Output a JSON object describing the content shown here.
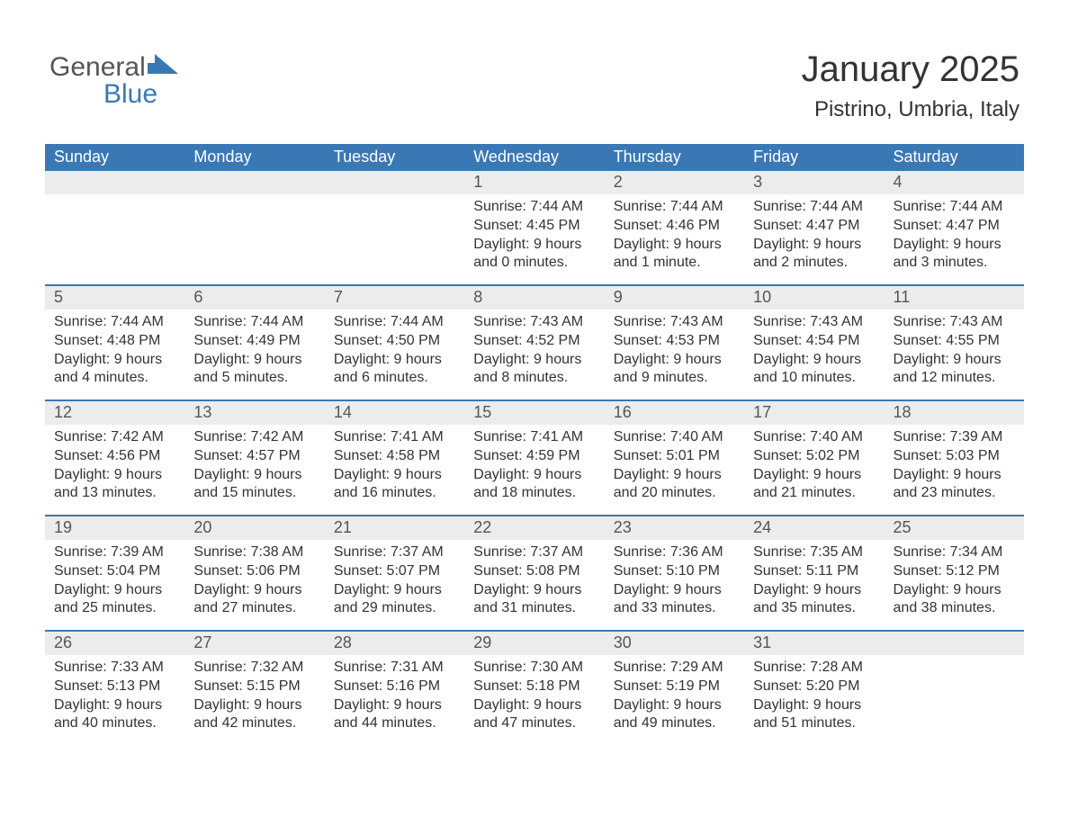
{
  "logo": {
    "text_general": "General",
    "text_blue": "Blue"
  },
  "title": "January 2025",
  "location": "Pistrino, Umbria, Italy",
  "colors": {
    "header_bg": "#3a78b5",
    "header_text": "#ffffff",
    "daynum_bg": "#ececec",
    "daynum_border": "#3a78b5",
    "body_text": "#333333",
    "logo_gray": "#555555",
    "logo_blue": "#3a78b5",
    "page_bg": "#ffffff"
  },
  "fonts": {
    "title_size_pt": 30,
    "location_size_pt": 18,
    "header_size_pt": 14,
    "daynum_size_pt": 14,
    "body_size_pt": 12
  },
  "calendar": {
    "day_headers": [
      "Sunday",
      "Monday",
      "Tuesday",
      "Wednesday",
      "Thursday",
      "Friday",
      "Saturday"
    ],
    "weeks": [
      [
        {
          "day": "",
          "sunrise": "",
          "sunset": "",
          "daylight1": "",
          "daylight2": ""
        },
        {
          "day": "",
          "sunrise": "",
          "sunset": "",
          "daylight1": "",
          "daylight2": ""
        },
        {
          "day": "",
          "sunrise": "",
          "sunset": "",
          "daylight1": "",
          "daylight2": ""
        },
        {
          "day": "1",
          "sunrise": "Sunrise: 7:44 AM",
          "sunset": "Sunset: 4:45 PM",
          "daylight1": "Daylight: 9 hours",
          "daylight2": "and 0 minutes."
        },
        {
          "day": "2",
          "sunrise": "Sunrise: 7:44 AM",
          "sunset": "Sunset: 4:46 PM",
          "daylight1": "Daylight: 9 hours",
          "daylight2": "and 1 minute."
        },
        {
          "day": "3",
          "sunrise": "Sunrise: 7:44 AM",
          "sunset": "Sunset: 4:47 PM",
          "daylight1": "Daylight: 9 hours",
          "daylight2": "and 2 minutes."
        },
        {
          "day": "4",
          "sunrise": "Sunrise: 7:44 AM",
          "sunset": "Sunset: 4:47 PM",
          "daylight1": "Daylight: 9 hours",
          "daylight2": "and 3 minutes."
        }
      ],
      [
        {
          "day": "5",
          "sunrise": "Sunrise: 7:44 AM",
          "sunset": "Sunset: 4:48 PM",
          "daylight1": "Daylight: 9 hours",
          "daylight2": "and 4 minutes."
        },
        {
          "day": "6",
          "sunrise": "Sunrise: 7:44 AM",
          "sunset": "Sunset: 4:49 PM",
          "daylight1": "Daylight: 9 hours",
          "daylight2": "and 5 minutes."
        },
        {
          "day": "7",
          "sunrise": "Sunrise: 7:44 AM",
          "sunset": "Sunset: 4:50 PM",
          "daylight1": "Daylight: 9 hours",
          "daylight2": "and 6 minutes."
        },
        {
          "day": "8",
          "sunrise": "Sunrise: 7:43 AM",
          "sunset": "Sunset: 4:52 PM",
          "daylight1": "Daylight: 9 hours",
          "daylight2": "and 8 minutes."
        },
        {
          "day": "9",
          "sunrise": "Sunrise: 7:43 AM",
          "sunset": "Sunset: 4:53 PM",
          "daylight1": "Daylight: 9 hours",
          "daylight2": "and 9 minutes."
        },
        {
          "day": "10",
          "sunrise": "Sunrise: 7:43 AM",
          "sunset": "Sunset: 4:54 PM",
          "daylight1": "Daylight: 9 hours",
          "daylight2": "and 10 minutes."
        },
        {
          "day": "11",
          "sunrise": "Sunrise: 7:43 AM",
          "sunset": "Sunset: 4:55 PM",
          "daylight1": "Daylight: 9 hours",
          "daylight2": "and 12 minutes."
        }
      ],
      [
        {
          "day": "12",
          "sunrise": "Sunrise: 7:42 AM",
          "sunset": "Sunset: 4:56 PM",
          "daylight1": "Daylight: 9 hours",
          "daylight2": "and 13 minutes."
        },
        {
          "day": "13",
          "sunrise": "Sunrise: 7:42 AM",
          "sunset": "Sunset: 4:57 PM",
          "daylight1": "Daylight: 9 hours",
          "daylight2": "and 15 minutes."
        },
        {
          "day": "14",
          "sunrise": "Sunrise: 7:41 AM",
          "sunset": "Sunset: 4:58 PM",
          "daylight1": "Daylight: 9 hours",
          "daylight2": "and 16 minutes."
        },
        {
          "day": "15",
          "sunrise": "Sunrise: 7:41 AM",
          "sunset": "Sunset: 4:59 PM",
          "daylight1": "Daylight: 9 hours",
          "daylight2": "and 18 minutes."
        },
        {
          "day": "16",
          "sunrise": "Sunrise: 7:40 AM",
          "sunset": "Sunset: 5:01 PM",
          "daylight1": "Daylight: 9 hours",
          "daylight2": "and 20 minutes."
        },
        {
          "day": "17",
          "sunrise": "Sunrise: 7:40 AM",
          "sunset": "Sunset: 5:02 PM",
          "daylight1": "Daylight: 9 hours",
          "daylight2": "and 21 minutes."
        },
        {
          "day": "18",
          "sunrise": "Sunrise: 7:39 AM",
          "sunset": "Sunset: 5:03 PM",
          "daylight1": "Daylight: 9 hours",
          "daylight2": "and 23 minutes."
        }
      ],
      [
        {
          "day": "19",
          "sunrise": "Sunrise: 7:39 AM",
          "sunset": "Sunset: 5:04 PM",
          "daylight1": "Daylight: 9 hours",
          "daylight2": "and 25 minutes."
        },
        {
          "day": "20",
          "sunrise": "Sunrise: 7:38 AM",
          "sunset": "Sunset: 5:06 PM",
          "daylight1": "Daylight: 9 hours",
          "daylight2": "and 27 minutes."
        },
        {
          "day": "21",
          "sunrise": "Sunrise: 7:37 AM",
          "sunset": "Sunset: 5:07 PM",
          "daylight1": "Daylight: 9 hours",
          "daylight2": "and 29 minutes."
        },
        {
          "day": "22",
          "sunrise": "Sunrise: 7:37 AM",
          "sunset": "Sunset: 5:08 PM",
          "daylight1": "Daylight: 9 hours",
          "daylight2": "and 31 minutes."
        },
        {
          "day": "23",
          "sunrise": "Sunrise: 7:36 AM",
          "sunset": "Sunset: 5:10 PM",
          "daylight1": "Daylight: 9 hours",
          "daylight2": "and 33 minutes."
        },
        {
          "day": "24",
          "sunrise": "Sunrise: 7:35 AM",
          "sunset": "Sunset: 5:11 PM",
          "daylight1": "Daylight: 9 hours",
          "daylight2": "and 35 minutes."
        },
        {
          "day": "25",
          "sunrise": "Sunrise: 7:34 AM",
          "sunset": "Sunset: 5:12 PM",
          "daylight1": "Daylight: 9 hours",
          "daylight2": "and 38 minutes."
        }
      ],
      [
        {
          "day": "26",
          "sunrise": "Sunrise: 7:33 AM",
          "sunset": "Sunset: 5:13 PM",
          "daylight1": "Daylight: 9 hours",
          "daylight2": "and 40 minutes."
        },
        {
          "day": "27",
          "sunrise": "Sunrise: 7:32 AM",
          "sunset": "Sunset: 5:15 PM",
          "daylight1": "Daylight: 9 hours",
          "daylight2": "and 42 minutes."
        },
        {
          "day": "28",
          "sunrise": "Sunrise: 7:31 AM",
          "sunset": "Sunset: 5:16 PM",
          "daylight1": "Daylight: 9 hours",
          "daylight2": "and 44 minutes."
        },
        {
          "day": "29",
          "sunrise": "Sunrise: 7:30 AM",
          "sunset": "Sunset: 5:18 PM",
          "daylight1": "Daylight: 9 hours",
          "daylight2": "and 47 minutes."
        },
        {
          "day": "30",
          "sunrise": "Sunrise: 7:29 AM",
          "sunset": "Sunset: 5:19 PM",
          "daylight1": "Daylight: 9 hours",
          "daylight2": "and 49 minutes."
        },
        {
          "day": "31",
          "sunrise": "Sunrise: 7:28 AM",
          "sunset": "Sunset: 5:20 PM",
          "daylight1": "Daylight: 9 hours",
          "daylight2": "and 51 minutes."
        },
        {
          "day": "",
          "sunrise": "",
          "sunset": "",
          "daylight1": "",
          "daylight2": ""
        }
      ]
    ]
  }
}
